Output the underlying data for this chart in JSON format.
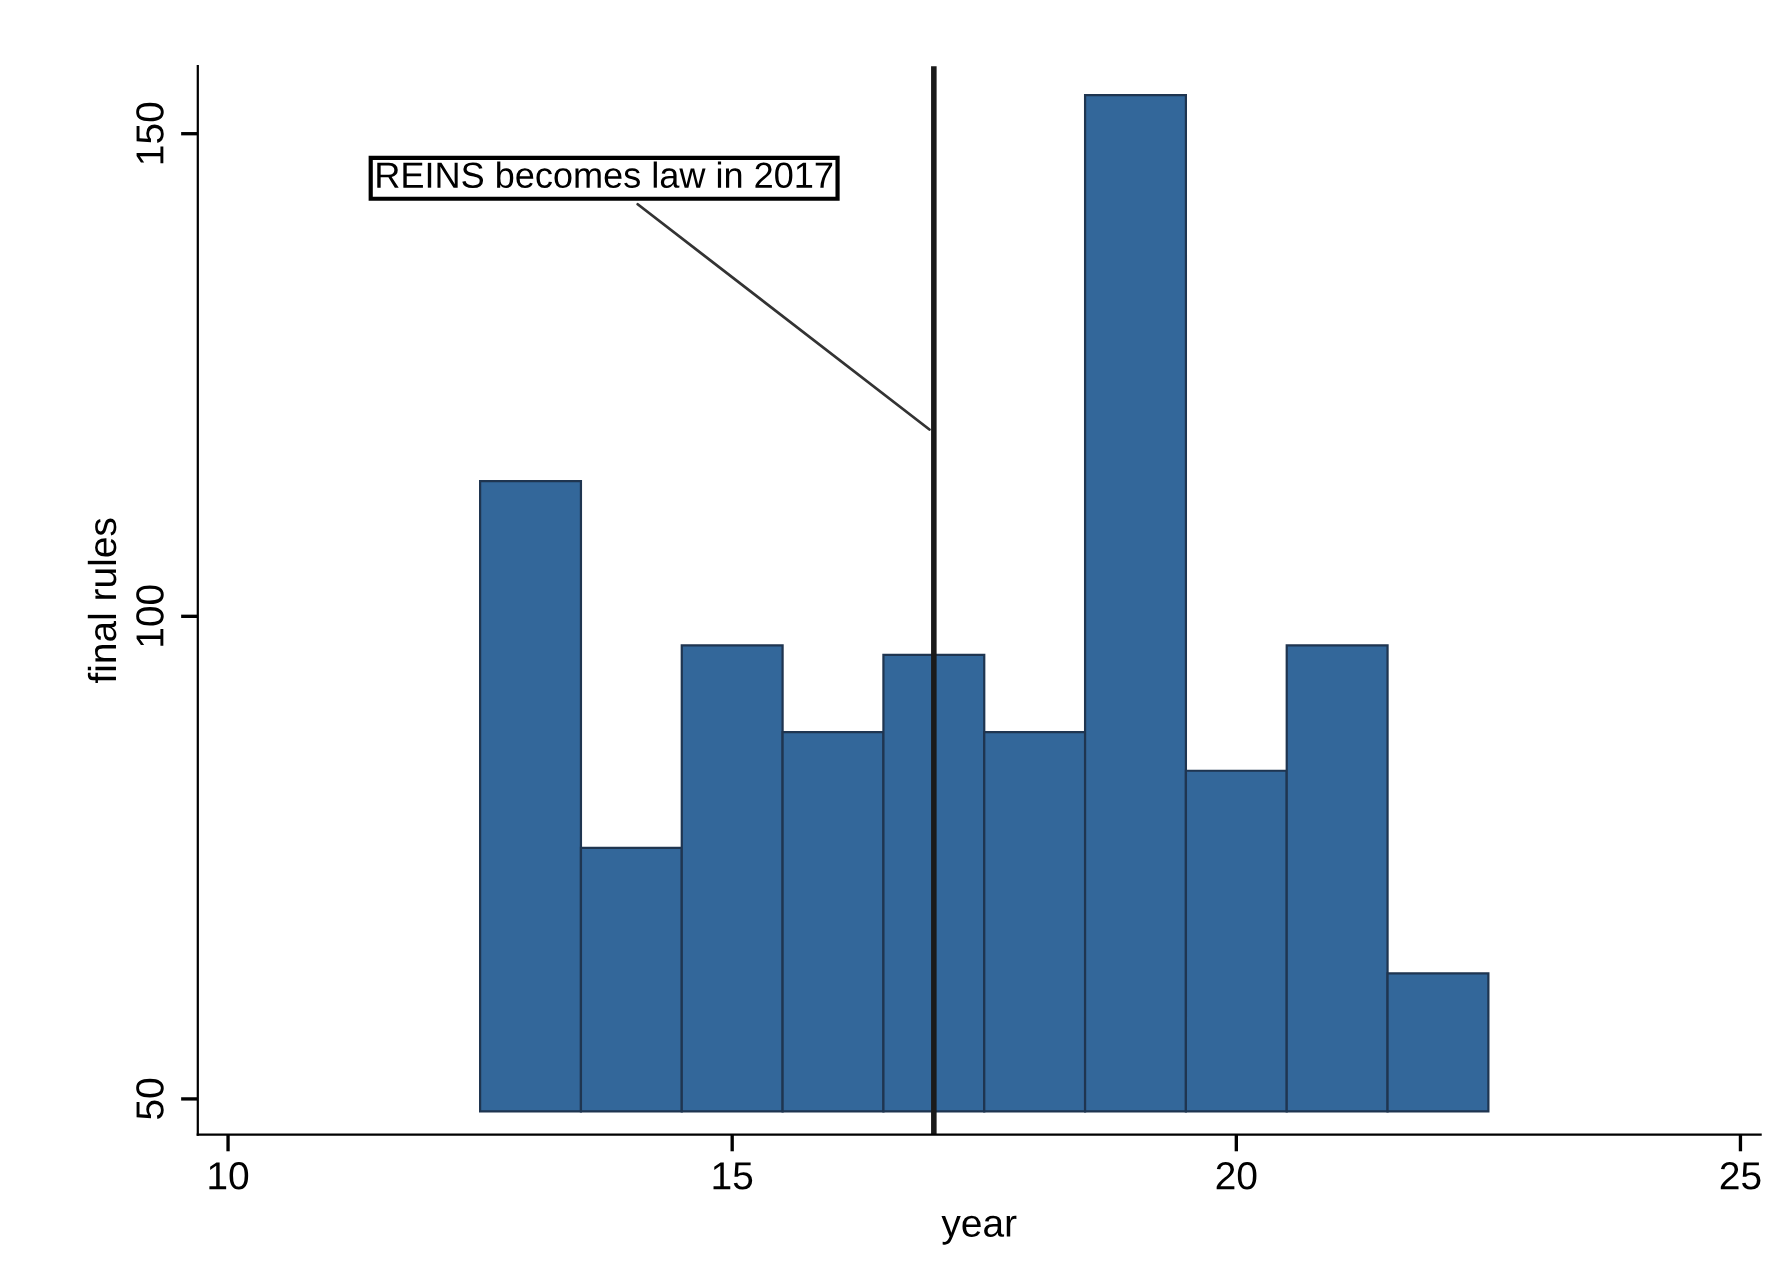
{
  "chart_data": {
    "type": "bar",
    "xlabel": "year",
    "ylabel": "final rules",
    "x": [
      13,
      14,
      15,
      16,
      17,
      18,
      19,
      20,
      21,
      22
    ],
    "base": [
      48.7,
      48.7,
      48.7,
      48.7,
      48.7,
      48.7,
      48.7,
      48.7,
      48.7,
      48.7
    ],
    "values": [
      65.3,
      27.3,
      48.3,
      39.3,
      47.3,
      39.3,
      105.3,
      35.3,
      48.3,
      14.3
    ],
    "color": "#33679a",
    "xlim": [
      9.7,
      25.2
    ],
    "xticks": [
      10,
      15,
      20,
      25
    ],
    "ylim": [
      46.3,
      157
    ],
    "yticks": [
      50,
      100,
      150
    ],
    "ref_lines": [
      {
        "axis": "x",
        "value": 17,
        "color": "#1a1a1a"
      }
    ],
    "annotations": [
      {
        "text": "REINS becomes law in 2017",
        "x": 17,
        "y": 119
      }
    ],
    "grid": false
  }
}
